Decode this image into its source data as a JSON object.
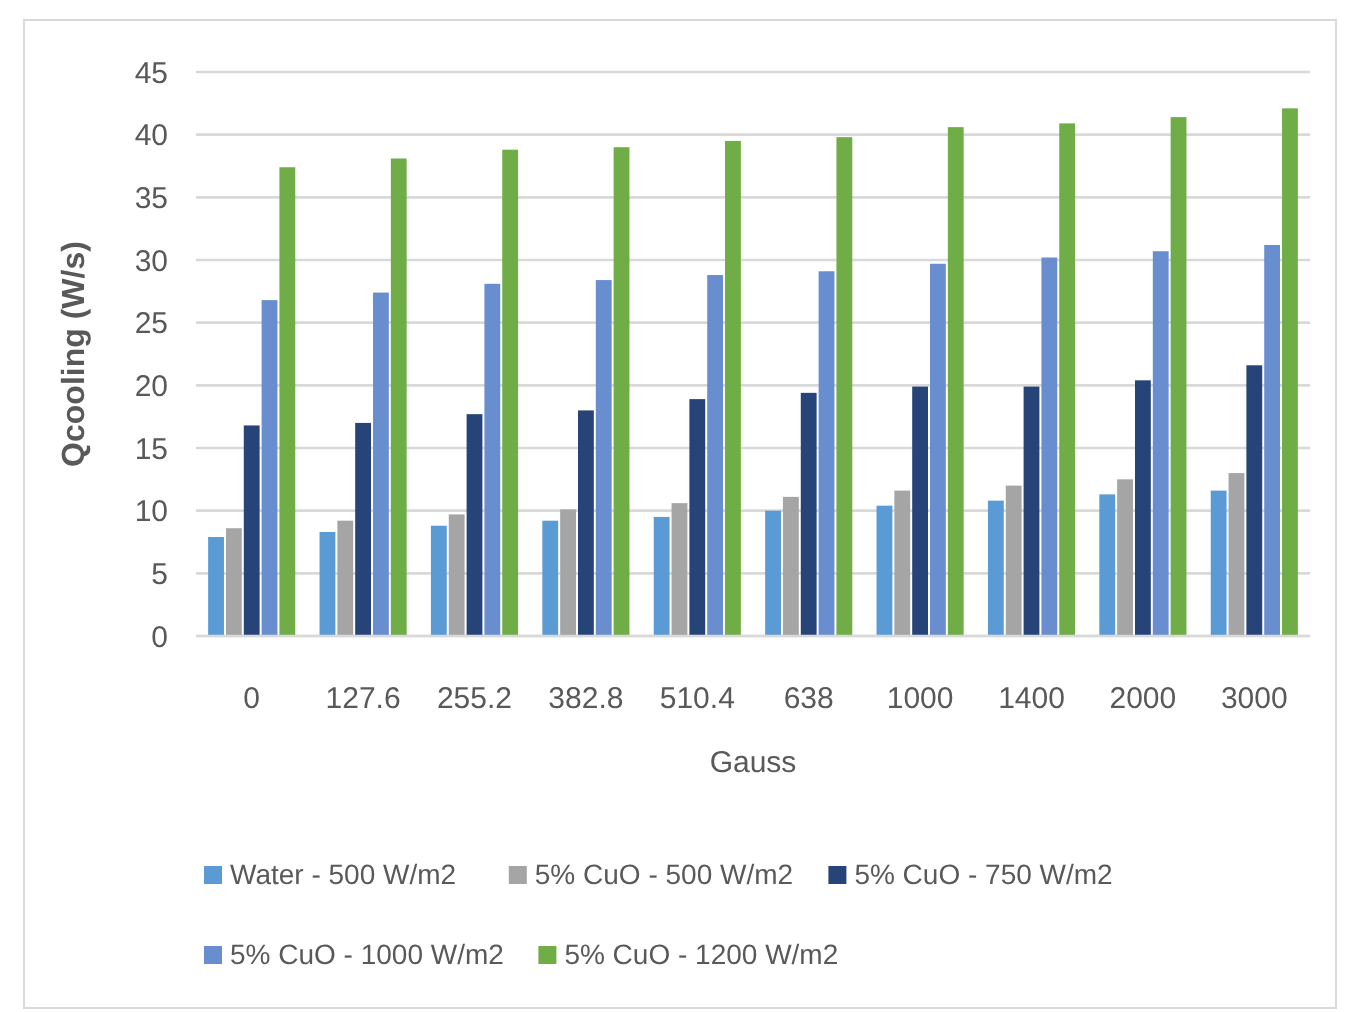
{
  "chart_data": {
    "type": "bar",
    "xlabel": "Gauss",
    "ylabel": "Qcooling (W/s)",
    "categories": [
      "0",
      "127.6",
      "255.2",
      "382.8",
      "510.4",
      "638",
      "1000",
      "1400",
      "2000",
      "3000"
    ],
    "series": [
      {
        "name": "Water - 500 W/m2",
        "color": "#5b9bd5",
        "values": [
          7.9,
          8.3,
          8.8,
          9.2,
          9.5,
          10.0,
          10.4,
          10.8,
          11.3,
          11.6
        ]
      },
      {
        "name": "5% CuO - 500 W/m2",
        "color": "#a5a5a5",
        "values": [
          8.6,
          9.2,
          9.7,
          10.1,
          10.6,
          11.1,
          11.6,
          12.0,
          12.5,
          13.0
        ]
      },
      {
        "name": "5% CuO - 750 W/m2",
        "color": "#264478",
        "values": [
          16.8,
          17.0,
          17.7,
          18.0,
          18.9,
          19.4,
          19.9,
          19.9,
          20.4,
          21.6
        ]
      },
      {
        "name": "5% CuO - 1000 W/m2",
        "color": "#698ed0",
        "values": [
          26.8,
          27.4,
          28.1,
          28.4,
          28.8,
          29.1,
          29.7,
          30.2,
          30.7,
          31.2
        ]
      },
      {
        "name": "5% CuO - 1200 W/m2",
        "color": "#70ad47",
        "values": [
          37.4,
          38.1,
          38.8,
          39.0,
          39.5,
          39.8,
          40.6,
          40.9,
          41.4,
          42.1
        ]
      }
    ],
    "ylim": [
      0,
      45
    ],
    "yticks": [
      0,
      5,
      10,
      15,
      20,
      25,
      30,
      35,
      40,
      45
    ],
    "grid": "y",
    "legend": "bottom"
  }
}
